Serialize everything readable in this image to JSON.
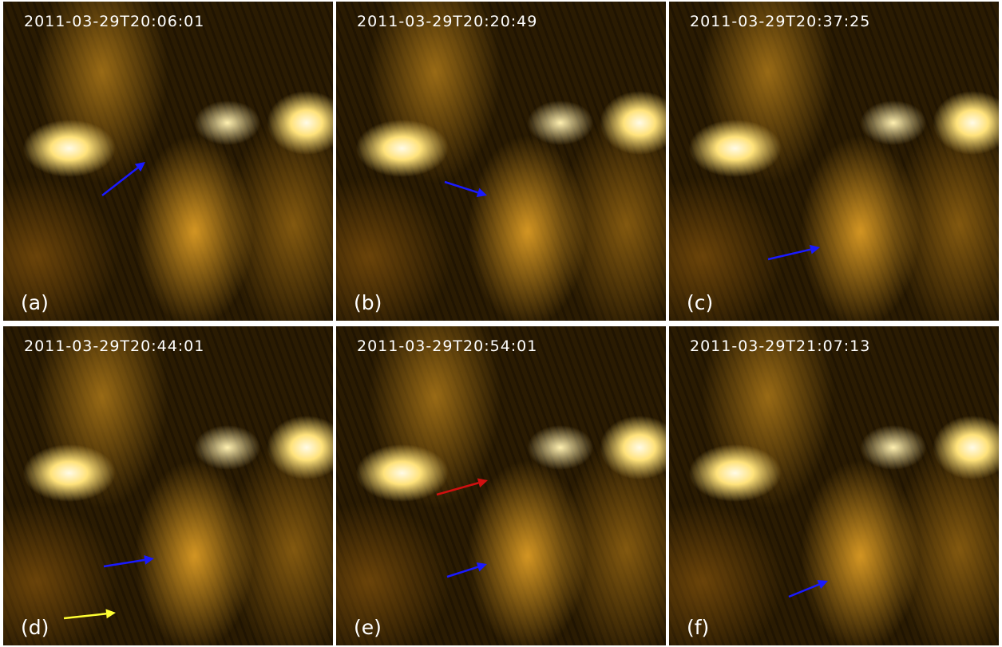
{
  "panels": [
    {
      "timestamp": "2011-03-29T20:06:01",
      "label": "(a)"
    },
    {
      "timestamp": "2011-03-29T20:20:49",
      "label": "(b)"
    },
    {
      "timestamp": "2011-03-29T20:37:25",
      "label": "(c)"
    },
    {
      "timestamp": "2011-03-29T20:44:01",
      "label": "(d)"
    },
    {
      "timestamp": "2011-03-29T20:54:01",
      "label": "(e)"
    },
    {
      "timestamp": "2011-03-29T21:07:13",
      "label": "(f)"
    }
  ]
}
